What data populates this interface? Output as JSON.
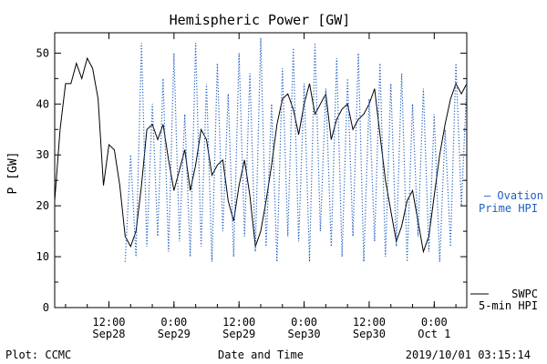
{
  "chart_data": {
    "type": "line",
    "title": "Hemispheric Power [GW]",
    "xlabel": "Date and Time",
    "ylabel": "P [GW]",
    "ylim": [
      0,
      54
    ],
    "yticks": [
      0,
      10,
      20,
      30,
      40,
      50
    ],
    "xlim_hours": [
      0,
      38
    ],
    "x_ticks": [
      {
        "line1": "12:00",
        "line2": "Sep28",
        "hour": 5
      },
      {
        "line1": "0:00",
        "line2": "Sep29",
        "hour": 11
      },
      {
        "line1": "12:00",
        "line2": "Sep29",
        "hour": 17
      },
      {
        "line1": "0:00",
        "line2": "Sep30",
        "hour": 23
      },
      {
        "line1": "12:00",
        "line2": "Sep30",
        "hour": 29
      },
      {
        "line1": "0:00",
        "line2": "Oct 1",
        "hour": 35
      }
    ],
    "series": [
      {
        "name": "SWPC 5-min HPI",
        "style": "solid",
        "color": "#000000",
        "legend": [
          "SWPC",
          "5-min HPI"
        ],
        "hours": [
          0,
          0.5,
          1,
          1.5,
          2,
          2.5,
          3,
          3.5,
          4,
          4.5,
          5,
          5.5,
          6,
          6.5,
          7,
          7.5,
          8,
          8.5,
          9,
          9.5,
          10,
          10.5,
          11,
          11.5,
          12,
          12.5,
          13,
          13.5,
          14,
          14.5,
          15,
          15.5,
          16,
          16.5,
          17,
          17.5,
          18,
          18.5,
          19,
          19.5,
          20,
          20.5,
          21,
          21.5,
          22,
          22.5,
          23,
          23.5,
          24,
          24.5,
          25,
          25.5,
          26,
          26.5,
          27,
          27.5,
          28,
          28.5,
          29,
          29.5,
          30,
          30.5,
          31,
          31.5,
          32,
          32.5,
          33,
          33.5,
          34,
          34.5,
          35,
          35.5,
          36,
          36.5,
          37,
          37.5,
          38
        ],
        "values": [
          21,
          35,
          44,
          44,
          48,
          45,
          49,
          47,
          41,
          24,
          32,
          31,
          24,
          14,
          12,
          15,
          24,
          35,
          36,
          33,
          36,
          29,
          23,
          27,
          31,
          23,
          28,
          35,
          33,
          26,
          28,
          29,
          21,
          17,
          24,
          29,
          22,
          12,
          15,
          21,
          28,
          36,
          41,
          42,
          39,
          34,
          40,
          44,
          38,
          40,
          42,
          33,
          37,
          39,
          40,
          35,
          37,
          38,
          40,
          43,
          34,
          25,
          19,
          13,
          16,
          21,
          23,
          17,
          11,
          14,
          22,
          30,
          36,
          41,
          44,
          42,
          44
        ]
      },
      {
        "name": "Ovation Prime HPI",
        "style": "dotted",
        "color": "#1f5fbf",
        "legend": [
          "— Ovation",
          "Prime HPI"
        ],
        "hours": [
          6.5,
          7,
          7.5,
          8,
          8.5,
          9,
          9.5,
          10,
          10.5,
          11,
          11.5,
          12,
          12.5,
          13,
          13.5,
          14,
          14.5,
          15,
          15.5,
          16,
          16.5,
          17,
          17.5,
          18,
          18.5,
          19,
          19.5,
          20,
          20.5,
          21,
          21.5,
          22,
          22.5,
          23,
          23.5,
          24,
          24.5,
          25,
          25.5,
          26,
          26.5,
          27,
          27.5,
          28,
          28.5,
          29,
          29.5,
          30,
          30.5,
          31,
          31.5,
          32,
          32.5,
          33,
          33.5,
          34,
          34.5,
          35,
          35.5,
          36,
          36.5,
          37,
          37.5,
          38
        ],
        "values": [
          9,
          30,
          10,
          52,
          12,
          40,
          14,
          45,
          11,
          50,
          13,
          38,
          10,
          52,
          12,
          44,
          9,
          48,
          15,
          42,
          10,
          50,
          14,
          46,
          11,
          53,
          12,
          40,
          9,
          47,
          14,
          51,
          13,
          44,
          9,
          52,
          15,
          43,
          12,
          49,
          10,
          45,
          14,
          50,
          9,
          41,
          13,
          48,
          10,
          44,
          12,
          46,
          9,
          40,
          14,
          43,
          11,
          38,
          9,
          35,
          12,
          48,
          20,
          44
        ]
      }
    ],
    "legend_placement": "right",
    "grid": false
  },
  "footer": {
    "left": "Plot: CCMC",
    "center": "Date and Time",
    "right": "2019/10/01 03:15:14"
  }
}
